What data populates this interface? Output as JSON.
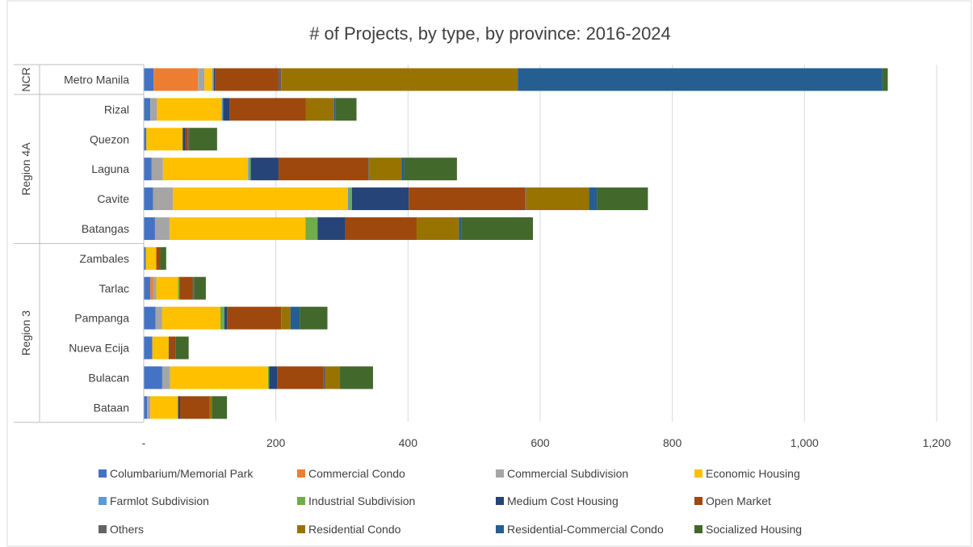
{
  "chart_data": {
    "type": "bar",
    "orientation": "horizontal",
    "stacked": true,
    "title": "# of Projects, by type, by province: 2016-2024",
    "xlabel": "",
    "ylabel": "",
    "xlim": [
      0,
      1200
    ],
    "x_ticks": [
      0,
      200,
      400,
      600,
      800,
      1000,
      1200
    ],
    "x_tick_labels": [
      "-",
      "200",
      "400",
      "600",
      "800",
      "1,000",
      "1,200"
    ],
    "gridlines": "vertical",
    "legend_position": "bottom",
    "groups": [
      {
        "label": "NCR",
        "categories": [
          "Metro Manila"
        ]
      },
      {
        "label": "Region 4A",
        "categories": [
          "Rizal",
          "Quezon",
          "Laguna",
          "Cavite",
          "Batangas"
        ]
      },
      {
        "label": "Region 3",
        "categories": [
          "Zambales",
          "Tarlac",
          "Pampanga",
          "Nueva Ecija",
          "Bulacan",
          "Bataan"
        ]
      }
    ],
    "categories": [
      "Metro Manila",
      "Rizal",
      "Quezon",
      "Laguna",
      "Cavite",
      "Batangas",
      "Zambales",
      "Tarlac",
      "Pampanga",
      "Nueva Ecija",
      "Bulacan",
      "Bataan"
    ],
    "series": [
      {
        "name": "Columbarium/Memorial Park",
        "color": "#4472C4",
        "values": [
          15,
          10,
          4,
          12,
          14,
          17,
          3,
          10,
          18,
          13,
          28,
          5
        ]
      },
      {
        "name": "Commercial Condo",
        "color": "#ED7D31",
        "values": [
          67,
          0,
          0,
          0,
          0,
          0,
          0,
          4,
          0,
          0,
          0,
          0
        ]
      },
      {
        "name": "Commercial Subdivision",
        "color": "#A5A5A5",
        "values": [
          10,
          10,
          0,
          17,
          30,
          22,
          0,
          5,
          10,
          0,
          12,
          5
        ]
      },
      {
        "name": "Economic Housing",
        "color": "#FFC000",
        "values": [
          12,
          98,
          55,
          129,
          265,
          206,
          16,
          33,
          88,
          25,
          148,
          42
        ]
      },
      {
        "name": "Farmlot Subdivision",
        "color": "#5B9BD5",
        "values": [
          2,
          2,
          0,
          2,
          2,
          0,
          0,
          0,
          0,
          0,
          0,
          0
        ]
      },
      {
        "name": "Industrial Subdivision",
        "color": "#70AD47",
        "values": [
          0,
          0,
          0,
          2,
          4,
          18,
          0,
          2,
          6,
          0,
          2,
          0
        ]
      },
      {
        "name": "Medium Cost Housing",
        "color": "#264478",
        "values": [
          2,
          10,
          4,
          42,
          86,
          42,
          0,
          0,
          4,
          2,
          12,
          3
        ]
      },
      {
        "name": "Open Market",
        "color": "#9E480E",
        "values": [
          96,
          115,
          4,
          136,
          176,
          108,
          6,
          20,
          82,
          8,
          70,
          44
        ]
      },
      {
        "name": "Others",
        "color": "#636363",
        "values": [
          4,
          0,
          2,
          2,
          2,
          0,
          0,
          2,
          0,
          0,
          3,
          0
        ]
      },
      {
        "name": "Residential Condo",
        "color": "#997300",
        "values": [
          358,
          43,
          0,
          48,
          95,
          64,
          0,
          0,
          14,
          0,
          22,
          4
        ]
      },
      {
        "name": "Residential-Commercial Condo",
        "color": "#255E91",
        "values": [
          552,
          2,
          0,
          4,
          12,
          4,
          0,
          0,
          14,
          0,
          0,
          0
        ]
      },
      {
        "name": "Socialized Housing",
        "color": "#43682B",
        "values": [
          8,
          32,
          42,
          80,
          77,
          108,
          9,
          18,
          42,
          20,
          50,
          23
        ]
      }
    ]
  }
}
